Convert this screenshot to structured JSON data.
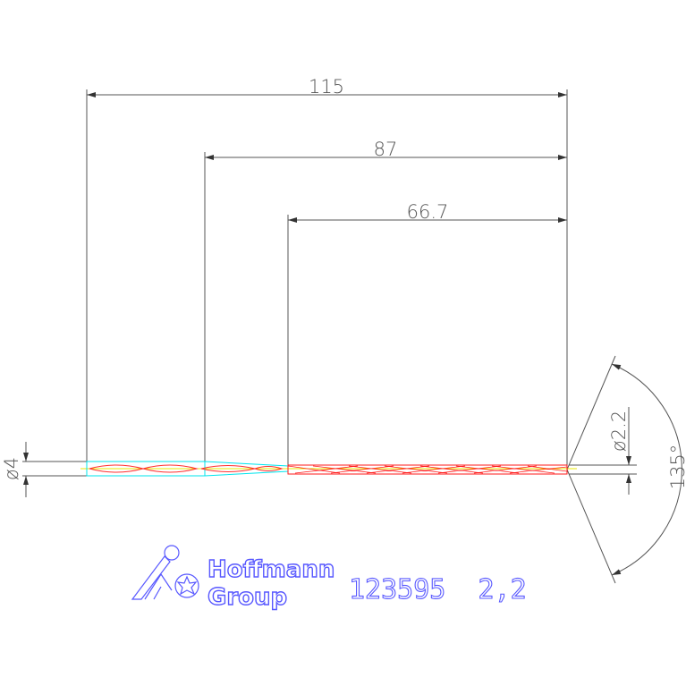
{
  "dimensions": {
    "overall_length": "115",
    "length_2": "87",
    "flute_length": "66.7",
    "shank_diameter": "ø4",
    "drill_diameter": "ø2.2",
    "point_angle": "135°"
  },
  "logo": {
    "line1": "Hoffmann",
    "line2": "Group"
  },
  "part_label": "123595  2,2",
  "colors": {
    "dimension": "#555555",
    "shank": "#00e5ee",
    "flute": "#ff1a1a",
    "axis": "#e8e800",
    "brand": "#5858ff"
  }
}
